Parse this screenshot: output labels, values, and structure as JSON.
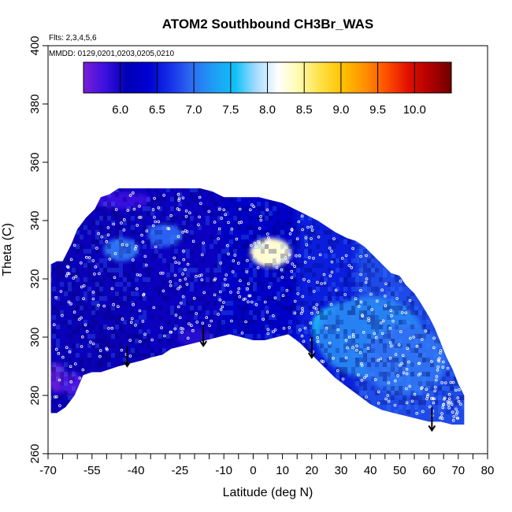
{
  "chart_data": {
    "type": "heatmap",
    "title": "ATOM2 Southbound CH3Br_WAS",
    "flights_label": "Flts: 2,3,4,5,6",
    "dates_label": "MMDD: 0129,0201,0203,0205,0210",
    "xlabel": "Latitude (deg N)",
    "ylabel": "Theta (C)",
    "xlim": [
      -70,
      80
    ],
    "ylim": [
      260,
      400
    ],
    "x_ticks_minor": [
      -70,
      -65,
      -60,
      -55,
      -50,
      -45,
      -40,
      -35,
      -30,
      -25,
      -20,
      -15,
      -10,
      -5,
      0,
      5,
      10,
      15,
      20,
      25,
      30,
      35,
      40,
      45,
      50,
      55,
      60,
      65,
      70,
      75,
      80
    ],
    "x_tick_labels": [
      {
        "v": -70,
        "t": "-70"
      },
      {
        "v": -55,
        "t": "-55"
      },
      {
        "v": -40,
        "t": "-40"
      },
      {
        "v": -25,
        "t": "-25"
      },
      {
        "v": -10,
        "t": "-10"
      },
      {
        "v": 0,
        "t": "0"
      },
      {
        "v": 10,
        "t": "10"
      },
      {
        "v": 20,
        "t": "20"
      },
      {
        "v": 30,
        "t": "30"
      },
      {
        "v": 40,
        "t": "40"
      },
      {
        "v": 50,
        "t": "50"
      },
      {
        "v": 60,
        "t": "60"
      },
      {
        "v": 70,
        "t": "70"
      },
      {
        "v": 80,
        "t": "80"
      }
    ],
    "y_ticks": [
      260,
      280,
      300,
      320,
      340,
      360,
      380,
      400
    ],
    "colorbar": {
      "range": [
        5.5,
        10.5
      ],
      "ticks": [
        6.0,
        6.5,
        7.0,
        7.5,
        8.0,
        8.5,
        9.0,
        9.5,
        10.0
      ],
      "tick_labels": [
        "6.0",
        "6.5",
        "7.0",
        "7.5",
        "8.0",
        "8.5",
        "9.0",
        "9.5",
        "10.0"
      ],
      "colors": [
        "#7a1fd6",
        "#3a10e0",
        "#0000b4",
        "#0000d2",
        "#1530e8",
        "#2f6cf2",
        "#1e9cf4",
        "#0fc0f8",
        "#a8dcff",
        "#ffffff",
        "#fff9a8",
        "#ffe040",
        "#ffc000",
        "#ff9000",
        "#ff5000",
        "#e01000",
        "#b00000",
        "#700000"
      ]
    },
    "boundary_top": [
      [
        -69,
        325
      ],
      [
        -67,
        326
      ],
      [
        -65,
        326
      ],
      [
        -62,
        332
      ],
      [
        -60,
        337
      ],
      [
        -57,
        341
      ],
      [
        -54,
        344
      ],
      [
        -52,
        348
      ],
      [
        -49,
        349
      ],
      [
        -46,
        351
      ],
      [
        -42,
        351
      ],
      [
        -38,
        351
      ],
      [
        -34,
        351
      ],
      [
        -30,
        351
      ],
      [
        -26,
        351
      ],
      [
        -22,
        351
      ],
      [
        -18,
        351
      ],
      [
        -14,
        350
      ],
      [
        -10,
        348
      ],
      [
        -6,
        348
      ],
      [
        -2,
        348
      ],
      [
        2,
        348
      ],
      [
        6,
        347
      ],
      [
        10,
        346
      ],
      [
        14,
        344
      ],
      [
        18,
        342
      ],
      [
        22,
        340
      ],
      [
        25,
        338
      ],
      [
        28,
        336
      ],
      [
        32,
        334
      ],
      [
        35,
        333
      ],
      [
        38,
        331
      ],
      [
        41,
        328
      ],
      [
        44,
        325
      ],
      [
        47,
        322
      ],
      [
        50,
        321
      ],
      [
        52,
        318
      ],
      [
        55,
        315
      ],
      [
        57,
        312
      ],
      [
        60,
        307
      ],
      [
        62,
        303
      ],
      [
        64,
        298
      ],
      [
        66,
        293
      ],
      [
        68,
        289
      ],
      [
        70,
        284
      ],
      [
        72,
        280
      ]
    ],
    "boundary_bottom": [
      [
        -69,
        274
      ],
      [
        -67,
        274
      ],
      [
        -64,
        276
      ],
      [
        -61,
        280
      ],
      [
        -58,
        287
      ],
      [
        -55,
        288
      ],
      [
        -52,
        288
      ],
      [
        -49,
        289
      ],
      [
        -46,
        290
      ],
      [
        -42,
        291
      ],
      [
        -38,
        292
      ],
      [
        -35,
        293
      ],
      [
        -31,
        294
      ],
      [
        -28,
        296
      ],
      [
        -24,
        297
      ],
      [
        -20,
        298
      ],
      [
        -16,
        299
      ],
      [
        -12,
        300
      ],
      [
        -8,
        301
      ],
      [
        -4,
        300
      ],
      [
        0,
        299
      ],
      [
        4,
        299
      ],
      [
        8,
        300
      ],
      [
        12,
        301
      ],
      [
        16,
        298
      ],
      [
        20,
        294
      ],
      [
        24,
        290
      ],
      [
        28,
        286
      ],
      [
        32,
        283
      ],
      [
        36,
        280
      ],
      [
        40,
        277
      ],
      [
        44,
        275
      ],
      [
        48,
        274
      ],
      [
        52,
        273
      ],
      [
        56,
        272
      ],
      [
        60,
        271
      ],
      [
        64,
        271
      ],
      [
        68,
        270
      ],
      [
        72,
        270
      ]
    ],
    "hotspots": [
      {
        "x": 6,
        "y": 329,
        "value": 9.2,
        "rx": 4,
        "ry": 3
      },
      {
        "x": 6,
        "y": 329,
        "value": 8.3,
        "rx": 7,
        "ry": 5
      },
      {
        "x": 26,
        "y": 305,
        "value": 7.8,
        "rx": 5,
        "ry": 4
      },
      {
        "x": 30,
        "y": 303,
        "value": 7.4,
        "rx": 10,
        "ry": 8
      },
      {
        "x": 40,
        "y": 300,
        "value": 7.1,
        "rx": 18,
        "ry": 14
      },
      {
        "x": 52,
        "y": 292,
        "value": 7.0,
        "rx": 14,
        "ry": 12
      },
      {
        "x": -45,
        "y": 330,
        "value": 7.0,
        "rx": 6,
        "ry": 4
      },
      {
        "x": -30,
        "y": 335,
        "value": 6.9,
        "rx": 6,
        "ry": 4
      },
      {
        "x": -67,
        "y": 286,
        "value": 5.6,
        "rx": 3,
        "ry": 5
      },
      {
        "x": -62,
        "y": 284,
        "value": 5.7,
        "rx": 4,
        "ry": 4
      },
      {
        "x": -45,
        "y": 347,
        "value": 5.8,
        "rx": 10,
        "ry": 3
      },
      {
        "x": -20,
        "y": 300,
        "value": 5.9,
        "rx": 6,
        "ry": 3
      }
    ],
    "arrows": [
      {
        "x": -43,
        "y_top": 297,
        "y_bottom": 290
      },
      {
        "x": -17,
        "y_top": 304,
        "y_bottom": 297
      },
      {
        "x": 20,
        "y_top": 300,
        "y_bottom": 293
      },
      {
        "x": 61,
        "y_top": 276,
        "y_bottom": 268
      }
    ]
  }
}
